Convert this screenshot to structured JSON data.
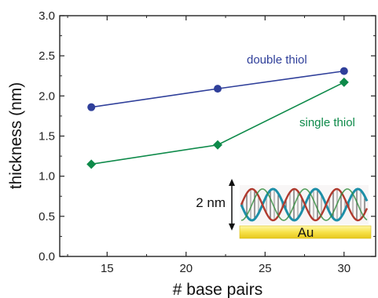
{
  "chart_data": {
    "type": "line",
    "xlabel": "# base pairs",
    "ylabel": "thickness (nm)",
    "xlim": [
      12,
      32
    ],
    "ylim": [
      0,
      3.0
    ],
    "xticks": [
      "15",
      "20",
      "25",
      "30"
    ],
    "yticks": [
      "0.0",
      "0.5",
      "1.0",
      "1.5",
      "2.0",
      "2.5",
      "3.0"
    ],
    "grid": false,
    "series": [
      {
        "name": "double thiol",
        "color": "#2f3f9a",
        "marker": "circle",
        "x": [
          14,
          22,
          30
        ],
        "y": [
          1.86,
          2.09,
          2.31
        ]
      },
      {
        "name": "single thiol",
        "color": "#0e8a4a",
        "marker": "diamond",
        "x": [
          14,
          22,
          30
        ],
        "y": [
          1.15,
          1.39,
          2.17
        ]
      }
    ],
    "inset": {
      "scale_label": "2 nm",
      "substrate_label": "Au"
    }
  }
}
